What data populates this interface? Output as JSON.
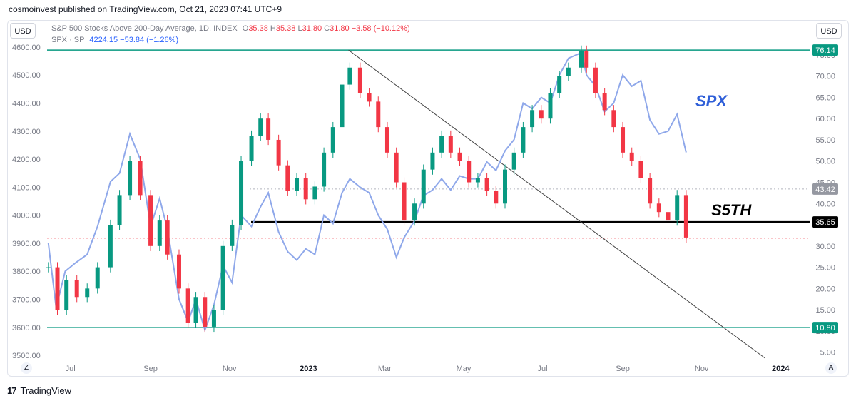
{
  "header": {
    "text": "cosmoinvest published on TradingView.com, Oct 21, 2023 07:41 UTC+9"
  },
  "currency_left": "USD",
  "currency_right": "USD",
  "legend": {
    "main_symbol": "S&P 500 Stocks Above 200-Day Average, 1D, INDEX",
    "o_label": "O",
    "o_value": "35.38",
    "h_label": "H",
    "h_value": "35.38",
    "l_label": "L",
    "l_value": "31.80",
    "c_label": "C",
    "c_value": "31.80",
    "change": "−3.58 (−10.12%)",
    "spx_symbol": "SPX · SP",
    "spx_value": "4224.15",
    "spx_change": "−53.84 (−1.26%)"
  },
  "bottom_buttons": {
    "left": "Z",
    "right": "A"
  },
  "footer": {
    "brand": "TradingView",
    "logo": "17"
  },
  "chart_data": {
    "type": "line",
    "left_axis": {
      "ticks": [
        "4600.00",
        "4500.00",
        "4400.00",
        "4300.00",
        "4200.00",
        "4100.00",
        "4000.00",
        "3900.00",
        "3800.00",
        "3700.00",
        "3600.00",
        "3500.00"
      ],
      "ylim": [
        3490,
        4610
      ]
    },
    "right_axis": {
      "ticks": [
        "75.00",
        "70.00",
        "65.00",
        "60.00",
        "55.00",
        "50.00",
        "45.00",
        "40.00",
        "35.00",
        "30.00",
        "25.00",
        "20.00",
        "15.00",
        "10.00",
        "5.00"
      ],
      "ylim": [
        3.6,
        77.5
      ]
    },
    "x_ticks": [
      "Jul",
      "Sep",
      "Nov",
      "2023",
      "Mar",
      "May",
      "Jul",
      "Sep",
      "Nov",
      "2024"
    ],
    "x_tick_dates": [
      "2022-07-01",
      "2022-09-01",
      "2022-11-01",
      "2023-01-01",
      "2023-03-01",
      "2023-05-01",
      "2023-07-01",
      "2023-09-01",
      "2023-11-01",
      "2024-01-01"
    ],
    "price_labels": [
      {
        "value": "76.14",
        "color": "#089981"
      },
      {
        "value": "43.42",
        "color": "#9598a1"
      },
      {
        "value": "35.65",
        "color": "#000000"
      },
      {
        "value": "10.80",
        "color": "#089981"
      }
    ],
    "horizontal_lines": [
      {
        "value": 76.14,
        "color": "#089981"
      },
      {
        "value": 10.8,
        "color": "#089981"
      },
      {
        "value": 35.65,
        "color": "#000000"
      },
      {
        "value": 43.42,
        "color": "#9598a1"
      }
    ],
    "trendline": {
      "from": {
        "date": "2023-02-01",
        "value": 76.14
      },
      "to": {
        "date": "2023-12-20",
        "value": 3.6
      }
    },
    "annotations": [
      {
        "text": "SPX",
        "color": "#2f5fd8"
      },
      {
        "text": "S5TH",
        "color": "#000000"
      }
    ],
    "series": [
      {
        "name": "SPX",
        "color": "#8fa8ea",
        "dates": [
          "2022-06-14",
          "2022-06-20",
          "2022-06-27",
          "2022-07-05",
          "2022-07-14",
          "2022-07-22",
          "2022-08-01",
          "2022-08-08",
          "2022-08-16",
          "2022-08-24",
          "2022-09-01",
          "2022-09-08",
          "2022-09-14",
          "2022-09-23",
          "2022-09-30",
          "2022-10-06",
          "2022-10-13",
          "2022-10-20",
          "2022-10-27",
          "2022-11-03",
          "2022-11-10",
          "2022-11-18",
          "2022-11-25",
          "2022-12-01",
          "2022-12-09",
          "2022-12-16",
          "2022-12-23",
          "2022-12-30",
          "2023-01-06",
          "2023-01-13",
          "2023-01-20",
          "2023-01-27",
          "2023-02-02",
          "2023-02-10",
          "2023-02-17",
          "2023-02-24",
          "2023-03-03",
          "2023-03-10",
          "2023-03-16",
          "2023-03-24",
          "2023-03-31",
          "2023-04-07",
          "2023-04-14",
          "2023-04-21",
          "2023-04-28",
          "2023-05-05",
          "2023-05-12",
          "2023-05-19",
          "2023-05-26",
          "2023-06-02",
          "2023-06-09",
          "2023-06-16",
          "2023-06-23",
          "2023-06-30",
          "2023-07-07",
          "2023-07-14",
          "2023-07-21",
          "2023-07-31",
          "2023-08-04",
          "2023-08-11",
          "2023-08-18",
          "2023-08-25",
          "2023-09-01",
          "2023-09-08",
          "2023-09-15",
          "2023-09-22",
          "2023-09-29",
          "2023-10-06",
          "2023-10-13",
          "2023-10-20"
        ],
        "values": [
          3900,
          3670,
          3800,
          3830,
          3860,
          3960,
          4120,
          4150,
          4290,
          4200,
          3960,
          4060,
          3950,
          3700,
          3620,
          3700,
          3590,
          3680,
          3820,
          3760,
          4000,
          3960,
          4030,
          4080,
          3940,
          3870,
          3840,
          3880,
          3860,
          4000,
          3970,
          4080,
          4130,
          4100,
          4080,
          4000,
          3950,
          3850,
          3920,
          3980,
          4070,
          4090,
          4130,
          4090,
          4140,
          4130,
          4130,
          4190,
          4160,
          4230,
          4270,
          4400,
          4380,
          4420,
          4400,
          4500,
          4560,
          4580,
          4500,
          4460,
          4370,
          4400,
          4500,
          4460,
          4480,
          4340,
          4290,
          4300,
          4360,
          4224
        ]
      },
      {
        "name": "S5TH",
        "dates": [
          "2022-06-14",
          "2022-06-21",
          "2022-06-28",
          "2022-07-06",
          "2022-07-14",
          "2022-07-22",
          "2022-08-01",
          "2022-08-08",
          "2022-08-16",
          "2022-08-24",
          "2022-09-01",
          "2022-09-08",
          "2022-09-14",
          "2022-09-23",
          "2022-09-30",
          "2022-10-06",
          "2022-10-13",
          "2022-10-20",
          "2022-10-27",
          "2022-11-03",
          "2022-11-10",
          "2022-11-18",
          "2022-11-25",
          "2022-12-01",
          "2022-12-09",
          "2022-12-16",
          "2022-12-23",
          "2022-12-30",
          "2023-01-06",
          "2023-01-13",
          "2023-01-20",
          "2023-01-27",
          "2023-02-02",
          "2023-02-10",
          "2023-02-17",
          "2023-02-24",
          "2023-03-03",
          "2023-03-10",
          "2023-03-16",
          "2023-03-24",
          "2023-03-31",
          "2023-04-07",
          "2023-04-14",
          "2023-04-21",
          "2023-04-28",
          "2023-05-05",
          "2023-05-12",
          "2023-05-19",
          "2023-05-26",
          "2023-06-02",
          "2023-06-09",
          "2023-06-16",
          "2023-06-23",
          "2023-06-30",
          "2023-07-07",
          "2023-07-14",
          "2023-07-21",
          "2023-07-31",
          "2023-08-04",
          "2023-08-11",
          "2023-08-18",
          "2023-08-25",
          "2023-09-01",
          "2023-09-08",
          "2023-09-15",
          "2023-09-22",
          "2023-09-29",
          "2023-10-06",
          "2023-10-13",
          "2023-10-20"
        ],
        "values": [
          25,
          15,
          22,
          18,
          20,
          25,
          35,
          42,
          50,
          42,
          30,
          36,
          28,
          20,
          12,
          18,
          11,
          15,
          30,
          35,
          50,
          56,
          60,
          55,
          49,
          43,
          46,
          41,
          44,
          52,
          58,
          68,
          72,
          66,
          64,
          58,
          52,
          45,
          36,
          40,
          48,
          52,
          56,
          52,
          50,
          45,
          46,
          43,
          40,
          48,
          52,
          58,
          62,
          60,
          66,
          70,
          72,
          76,
          72,
          66,
          62,
          58,
          52,
          50,
          46,
          40,
          38,
          36,
          42,
          32
        ]
      }
    ]
  }
}
